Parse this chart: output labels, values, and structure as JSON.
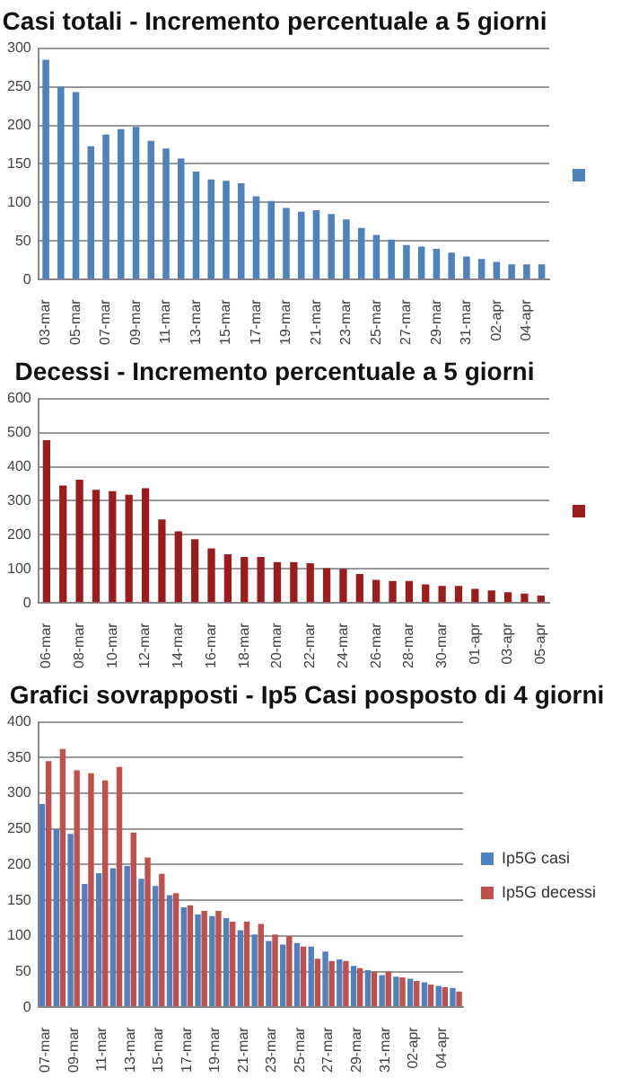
{
  "chart_data": [
    {
      "type": "bar",
      "title": "Casi totali - Incremento percentuale a 5 giorni",
      "categories": [
        "03-mar",
        null,
        "05-mar",
        null,
        "07-mar",
        null,
        "09-mar",
        null,
        "11-mar",
        null,
        "13-mar",
        null,
        "15-mar",
        null,
        "17-mar",
        null,
        "19-mar",
        null,
        "21-mar",
        null,
        "23-mar",
        null,
        "25-mar",
        null,
        "27-mar",
        null,
        "29-mar",
        null,
        "31-mar",
        null,
        "02-apr",
        null,
        "04-apr",
        null
      ],
      "series": [
        {
          "color": "#4f81bd",
          "values": [
            285,
            250,
            243,
            173,
            188,
            195,
            198,
            180,
            170,
            157,
            140,
            130,
            128,
            125,
            108,
            102,
            93,
            88,
            90,
            85,
            78,
            67,
            58,
            52,
            45,
            43,
            40,
            35,
            30,
            27,
            23,
            20,
            20,
            20
          ]
        }
      ],
      "ylim": [
        0,
        300
      ],
      "yticks": [
        0,
        50,
        100,
        150,
        200,
        250,
        300
      ],
      "grid": "y"
    },
    {
      "type": "bar",
      "title": "Decessi - Incremento percentuale a 5 giorni",
      "categories": [
        "06-mar",
        null,
        "08-mar",
        null,
        "10-mar",
        null,
        "12-mar",
        null,
        "14-mar",
        null,
        "16-mar",
        null,
        "18-mar",
        null,
        "20-mar",
        null,
        "22-mar",
        null,
        "24-mar",
        null,
        "26-mar",
        null,
        "28-mar",
        null,
        "30-mar",
        null,
        "01-apr",
        null,
        "03-apr",
        null,
        "05-apr"
      ],
      "series": [
        {
          "color": "#9b1c1c",
          "values": [
            478,
            345,
            362,
            332,
            328,
            318,
            337,
            245,
            210,
            187,
            160,
            143,
            135,
            135,
            120,
            120,
            117,
            102,
            100,
            85,
            68,
            65,
            65,
            55,
            50,
            50,
            42,
            37,
            32,
            28,
            22
          ]
        }
      ],
      "ylim": [
        0,
        600
      ],
      "yticks": [
        0,
        100,
        200,
        300,
        400,
        500,
        600
      ],
      "grid": "y"
    },
    {
      "type": "bar",
      "title": "Grafici sovrapposti - Ip5 Casi posposto di 4 giorni",
      "categories": [
        "07-mar",
        null,
        "09-mar",
        null,
        "11-mar",
        null,
        "13-mar",
        null,
        "15-mar",
        null,
        "17-mar",
        null,
        "19-mar",
        null,
        "21-mar",
        null,
        "23-mar",
        null,
        "25-mar",
        null,
        "27-mar",
        null,
        "29-mar",
        null,
        "31-mar",
        null,
        "02-apr",
        null,
        "04-apr",
        null
      ],
      "series": [
        {
          "name": "Ip5G casi",
          "color": "#4f81bd",
          "values": [
            285,
            250,
            243,
            173,
            188,
            195,
            198,
            180,
            170,
            157,
            140,
            130,
            128,
            125,
            108,
            102,
            93,
            88,
            90,
            85,
            78,
            67,
            58,
            52,
            45,
            43,
            40,
            35,
            30,
            27
          ]
        },
        {
          "name": "Ip5G decessi",
          "color": "#c0504d",
          "values": [
            345,
            362,
            332,
            328,
            318,
            337,
            245,
            210,
            187,
            160,
            143,
            135,
            135,
            120,
            120,
            117,
            102,
            100,
            85,
            68,
            65,
            65,
            55,
            50,
            50,
            42,
            37,
            32,
            28,
            22
          ]
        }
      ],
      "ylim": [
        0,
        400
      ],
      "yticks": [
        0,
        50,
        100,
        150,
        200,
        250,
        300,
        350,
        400
      ],
      "grid": "y",
      "legend": "right"
    }
  ]
}
